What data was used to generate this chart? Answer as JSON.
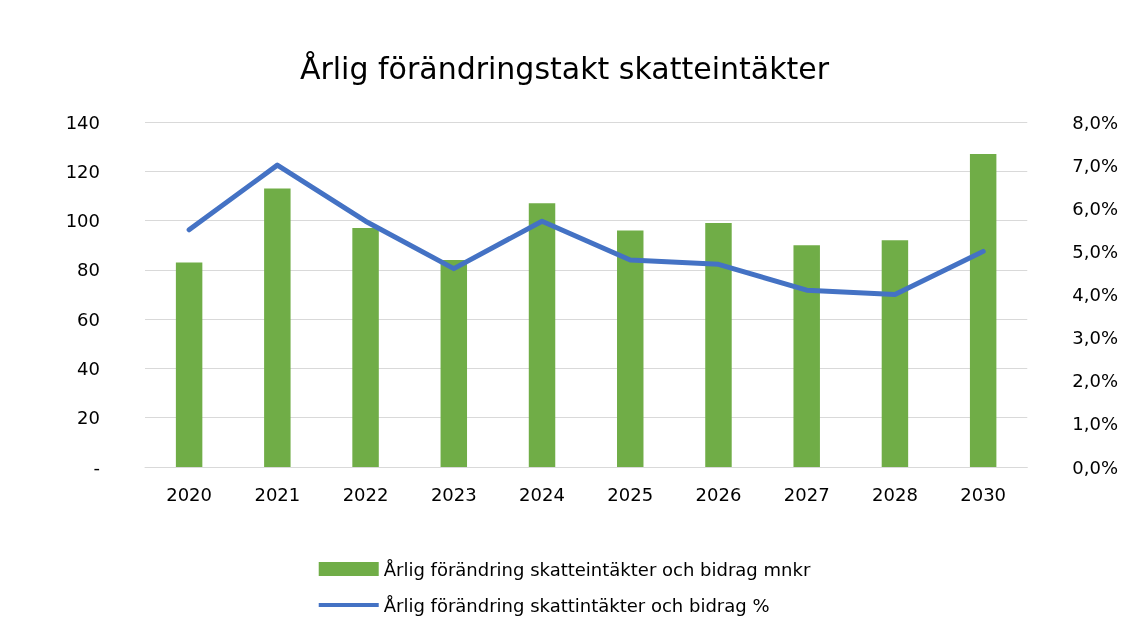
{
  "chart_data": {
    "type": "bar",
    "title": "Årlig förändringstakt skatteintäkter",
    "categories": [
      "2020",
      "2021",
      "2022",
      "2023",
      "2024",
      "2025",
      "2026",
      "2027",
      "2028",
      "2030"
    ],
    "series": [
      {
        "name": "Årlig förändring skatteintäkter och bidrag mnkr",
        "color": "#70ad47",
        "values": [
          83,
          113,
          97,
          84,
          107,
          96,
          99,
          90,
          92,
          127
        ]
      },
      {
        "name": "Årlig förändring skattintäkter och bidrag %",
        "type": "line",
        "axis": "y2",
        "color": "#4472c4",
        "values": [
          5.5,
          7.0,
          5.7,
          4.6,
          5.7,
          4.8,
          4.7,
          4.1,
          4.0,
          5.0
        ]
      }
    ],
    "ylim": [
      0,
      140
    ],
    "yticks": [
      {
        "value": 0,
        "label": "-"
      },
      20,
      40,
      60,
      80,
      100,
      120,
      140
    ],
    "y2lim": [
      0,
      8
    ],
    "y2ticks": [
      {
        "value": 0,
        "label": "0,0%"
      },
      {
        "value": 1,
        "label": "1,0%"
      },
      {
        "value": 2,
        "label": "2,0%"
      },
      {
        "value": 3,
        "label": "3,0%"
      },
      {
        "value": 4,
        "label": "4,0%"
      },
      {
        "value": 5,
        "label": "5,0%"
      },
      {
        "value": 6,
        "label": "6,0%"
      },
      {
        "value": 7,
        "label": "7,0%"
      },
      {
        "value": 8,
        "label": "8,0%"
      }
    ],
    "grid": "y",
    "legend": "bottom",
    "marker": "none",
    "line_style": "solid"
  }
}
